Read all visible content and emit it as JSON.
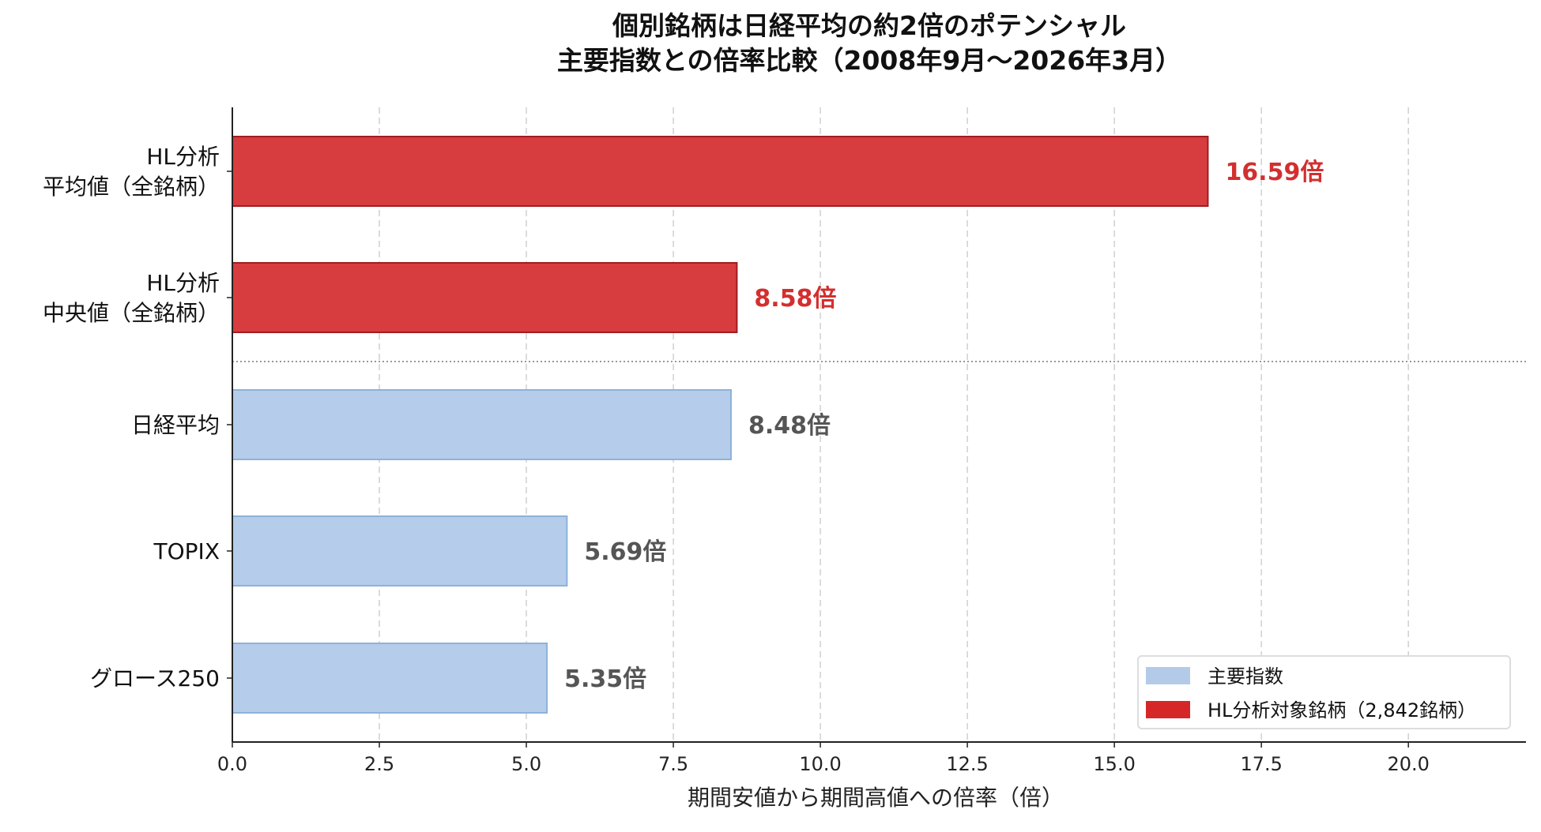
{
  "chart_data": {
    "type": "bar",
    "orientation": "horizontal",
    "title": "個別銘柄は日経平均の約2倍のポテンシャル",
    "subtitle": "主要指数との倍率比較（2008年9月〜2026年3月）",
    "xlabel": "期間安値から期間高値への倍率（倍）",
    "ylabel": "",
    "xlim": [
      0,
      22
    ],
    "xticks": [
      "0.0",
      "2.5",
      "5.0",
      "7.5",
      "10.0",
      "12.5",
      "15.0",
      "17.5",
      "20.0"
    ],
    "grid": "vertical dashed",
    "categories": [
      "HL分析\n平均値（全銘柄）",
      "HL分析\n中央値（全銘柄）",
      "日経平均",
      "TOPIX",
      "グロース250"
    ],
    "values": [
      16.59,
      8.58,
      8.48,
      5.69,
      5.35
    ],
    "data_labels": [
      "16.59倍",
      "8.58倍",
      "8.48倍",
      "5.69倍",
      "5.35倍"
    ],
    "bar_groups": [
      "hl",
      "hl",
      "index",
      "index",
      "index"
    ],
    "separator": "dotted line between HL rows and index rows",
    "legend": {
      "placement": "lower-right",
      "entries": [
        {
          "label": "主要指数",
          "color": "#b3cbe9"
        },
        {
          "label": "HL分析対象銘柄（2,842銘柄）",
          "color": "#d62728"
        }
      ]
    },
    "colors": {
      "hl_fill": "#d73c3f",
      "hl_edge": "#a11c20",
      "index_fill": "#b5cceb",
      "index_edge": "#8db2d8",
      "hl_label": "#d32f2f",
      "index_label": "#555555"
    }
  }
}
